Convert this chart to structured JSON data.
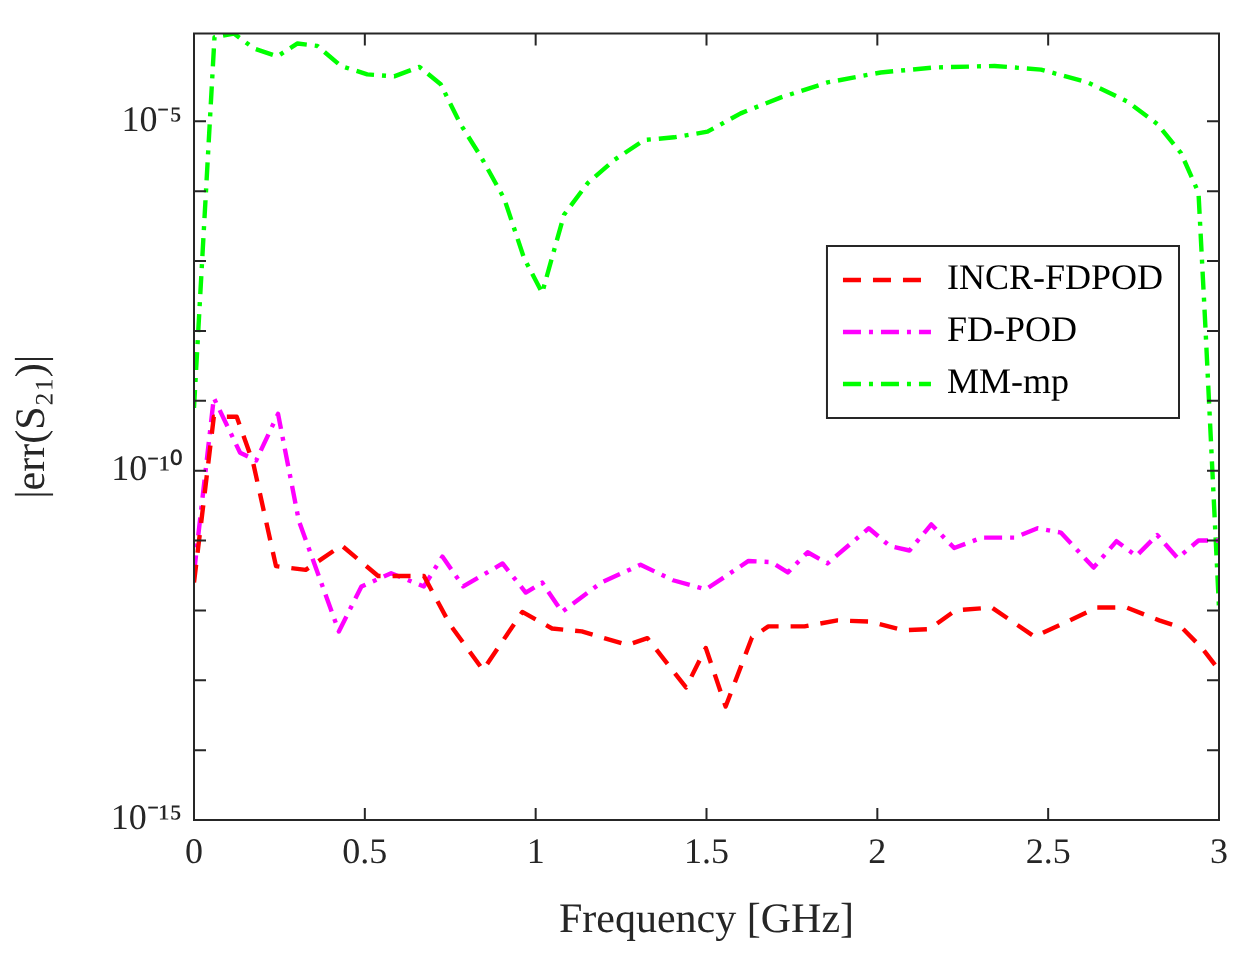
{
  "chart_data": {
    "type": "line",
    "xlabel": "Frequency [GHz]",
    "ylabel": "|err(S₂₁)|",
    "xlim": [
      0,
      3
    ],
    "xticks": [
      0,
      0.5,
      1,
      1.5,
      2,
      2.5,
      3
    ],
    "ylim": [
      1e-15,
      0.00018
    ],
    "log": "y",
    "yticks": [
      {
        "value": 1e-15,
        "label": "10⁻¹⁵"
      },
      {
        "value": 1e-14,
        "label": null
      },
      {
        "value": 1e-13,
        "label": null
      },
      {
        "value": 1e-12,
        "label": null
      },
      {
        "value": 1e-11,
        "label": null
      },
      {
        "value": 1e-10,
        "label": "10⁻¹⁰"
      },
      {
        "value": 1e-09,
        "label": null
      },
      {
        "value": 1e-08,
        "label": null
      },
      {
        "value": 1e-07,
        "label": null
      },
      {
        "value": 1e-06,
        "label": null
      },
      {
        "value": 1e-05,
        "label": "10⁻⁵"
      }
    ],
    "grid": false,
    "legend": "right",
    "marker": "none",
    "series": [
      {
        "name": "INCR-FDPOD",
        "color": "#ff0000",
        "line_style": "dashed",
        "x": [
          0,
          0.058,
          0.125,
          0.173,
          0.24,
          0.327,
          0.432,
          0.539,
          0.673,
          0.75,
          0.846,
          0.961,
          1.048,
          1.135,
          1.269,
          1.327,
          1.44,
          1.498,
          1.556,
          1.633,
          1.681,
          1.787,
          1.883,
          1.979,
          2.075,
          2.152,
          2.229,
          2.335,
          2.46,
          2.556,
          2.643,
          2.729,
          2.825,
          2.892,
          2.95,
          3
        ],
        "values": [
          2.5e-12,
          5.9e-10,
          5.9e-10,
          1.3e-10,
          4.3e-12,
          3.8e-12,
          8.5e-12,
          3.1e-12,
          3.1e-12,
          6.2e-13,
          1.4e-13,
          9.5e-13,
          5.5e-13,
          5e-13,
          3.2e-13,
          4e-13,
          7.9e-14,
          2.9e-13,
          4.2e-14,
          4.1e-13,
          5.9e-13,
          5.9e-13,
          7.2e-13,
          6.9e-13,
          5.2e-13,
          5.4e-13,
          1e-12,
          1.1e-12,
          4.2e-13,
          6.9e-13,
          1.1e-12,
          1.1e-12,
          7.2e-13,
          5.6e-13,
          2.9e-13,
          1.4e-13
        ]
      },
      {
        "name": "FD-POD",
        "color": "#ff00ff",
        "line_style": "dashdot",
        "x": [
          0,
          0.058,
          0.135,
          0.182,
          0.246,
          0.307,
          0.424,
          0.49,
          0.577,
          0.673,
          0.727,
          0.788,
          0.903,
          0.971,
          1.019,
          1.077,
          1.192,
          1.307,
          1.402,
          1.498,
          1.623,
          1.69,
          1.738,
          1.796,
          1.854,
          1.975,
          2.037,
          2.094,
          2.158,
          2.225,
          2.306,
          2.402,
          2.469,
          2.537,
          2.633,
          2.7,
          2.758,
          2.819,
          2.879,
          2.94,
          3
        ],
        "values": [
          3.4e-12,
          1.1e-09,
          1.8e-10,
          1.4e-10,
          6.5e-10,
          1.9e-11,
          5e-13,
          2.2e-12,
          3.4e-12,
          2.2e-12,
          5.9e-12,
          2.2e-12,
          4.7e-12,
          1.8e-12,
          2.5e-12,
          9.5e-13,
          2.5e-12,
          4.5e-12,
          2.7e-12,
          2e-12,
          5.1e-12,
          4.9e-12,
          3.5e-12,
          6.8e-12,
          4.7e-12,
          1.5e-11,
          8.3e-12,
          7.2e-12,
          1.7e-11,
          7.8e-12,
          1.1e-11,
          1.1e-11,
          1.5e-11,
          1.3e-11,
          4.1e-12,
          9.8e-12,
          6e-12,
          1.2e-11,
          5.6e-12,
          1e-11,
          1e-11
        ]
      },
      {
        "name": "MM-mp",
        "color": "#00ff00",
        "line_style": "dashdot",
        "x": [
          0,
          0.06,
          0.117,
          0.176,
          0.244,
          0.303,
          0.361,
          0.43,
          0.507,
          0.586,
          0.66,
          0.722,
          0.78,
          0.84,
          0.908,
          0.966,
          1.019,
          1.083,
          1.152,
          1.23,
          1.318,
          1.405,
          1.503,
          1.6,
          1.718,
          1.854,
          2.01,
          2.167,
          2.343,
          2.479,
          2.616,
          2.733,
          2.82,
          2.889,
          2.94,
          2.96,
          3
        ],
        "values": [
          7.9e-10,
          0.00016,
          0.00018,
          0.00011,
          8.5e-05,
          0.00013,
          0.00012,
          6.2e-05,
          4.7e-05,
          4.4e-05,
          6e-05,
          3.4e-05,
          9.1e-06,
          3.1e-06,
          7.8e-07,
          1.1e-07,
          3.5e-08,
          4.6e-07,
          1.3e-06,
          2.8e-06,
          5.4e-06,
          5.9e-06,
          7.1e-06,
          1.3e-05,
          2.2e-05,
          3.6e-05,
          5e-05,
          5.9e-05,
          6.2e-05,
          5.5e-05,
          3.6e-05,
          1.9e-05,
          9.1e-06,
          3.5e-06,
          9.5e-07,
          1.2e-08,
          1.1e-12
        ]
      }
    ]
  }
}
